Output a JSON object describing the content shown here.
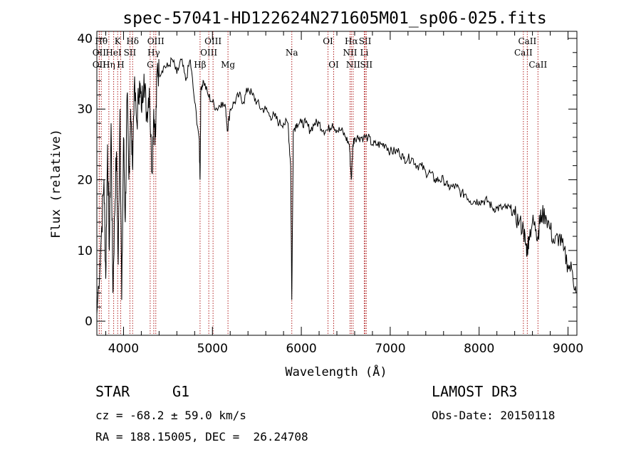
{
  "chart_data": {
    "type": "line",
    "title": "spec-57041-HD122624N271605M01_sp06-025.fits",
    "xlabel": "Wavelength (Å)",
    "ylabel": "Flux (relative)",
    "xlim": [
      3700,
      9100
    ],
    "ylim": [
      -2,
      41
    ],
    "xticks": [
      4000,
      5000,
      6000,
      7000,
      8000,
      9000
    ],
    "yticks": [
      0,
      10,
      20,
      30,
      40
    ],
    "grid": false,
    "series": [
      {
        "name": "flux",
        "x": [
          3700,
          3750,
          3780,
          3800,
          3820,
          3840,
          3860,
          3880,
          3900,
          3920,
          3940,
          3960,
          3980,
          4000,
          4020,
          4040,
          4060,
          4080,
          4100,
          4120,
          4150,
          4180,
          4200,
          4230,
          4260,
          4290,
          4320,
          4340,
          4360,
          4380,
          4400,
          4450,
          4500,
          4550,
          4600,
          4650,
          4700,
          4750,
          4800,
          4850,
          4861,
          4870,
          4900,
          4950,
          5000,
          5050,
          5100,
          5150,
          5170,
          5200,
          5250,
          5300,
          5350,
          5400,
          5450,
          5500,
          5550,
          5600,
          5650,
          5700,
          5750,
          5800,
          5850,
          5880,
          5893,
          5910,
          5950,
          6000,
          6050,
          6100,
          6150,
          6200,
          6250,
          6300,
          6350,
          6400,
          6450,
          6500,
          6540,
          6563,
          6580,
          6600,
          6650,
          6700,
          6750,
          6800,
          6850,
          6900,
          6950,
          7000,
          7050,
          7100,
          7150,
          7200,
          7250,
          7300,
          7350,
          7400,
          7450,
          7500,
          7550,
          7600,
          7650,
          7700,
          7750,
          7800,
          7850,
          7900,
          7950,
          8000,
          8050,
          8100,
          8150,
          8200,
          8250,
          8300,
          8350,
          8400,
          8450,
          8500,
          8520,
          8542,
          8560,
          8600,
          8640,
          8662,
          8680,
          8700,
          8750,
          8800,
          8850,
          8900,
          8950,
          9000,
          9050,
          9090
        ],
        "y": [
          1,
          12,
          20,
          6,
          25,
          10,
          28,
          4,
          15,
          24,
          8,
          30,
          3,
          26,
          14,
          32,
          20,
          30,
          22,
          33,
          28,
          34,
          30,
          35,
          29,
          33,
          21,
          30,
          26,
          36,
          35,
          36,
          36,
          37,
          35,
          37,
          34,
          37,
          31,
          26,
          20,
          33,
          34,
          32,
          31,
          30,
          31,
          30,
          27,
          30,
          31,
          32,
          31,
          33,
          32,
          31,
          30,
          30,
          29,
          29,
          28,
          28,
          28,
          22,
          3,
          27,
          28,
          28,
          28,
          27,
          28,
          28,
          27,
          27,
          28,
          27,
          27,
          26,
          25,
          20,
          25,
          26,
          26,
          26,
          26,
          25,
          25,
          25,
          25,
          24,
          24,
          24,
          23,
          23,
          23,
          22,
          22,
          21,
          21,
          20,
          20,
          20,
          19,
          19,
          19,
          18,
          18,
          17,
          17,
          17,
          17,
          17,
          16,
          16,
          16,
          16,
          16,
          15,
          14,
          13,
          11,
          10,
          12,
          14,
          13,
          12,
          14,
          15,
          15,
          13,
          11,
          12,
          10,
          8,
          7,
          4
        ]
      }
    ],
    "lines": [
      {
        "wave": 3750,
        "label": "Hθ",
        "row": 1
      },
      {
        "wave": 3727,
        "label": "OII",
        "row": 2
      },
      {
        "wave": 3727,
        "label": "OII",
        "row": 3
      },
      {
        "wave": 3835,
        "label": "Hη",
        "row": 3
      },
      {
        "wave": 3889,
        "label": "HeI",
        "row": 2
      },
      {
        "wave": 3934,
        "label": "K",
        "row": 1
      },
      {
        "wave": 3968,
        "label": "H",
        "row": 3
      },
      {
        "wave": 4072,
        "label": "SII",
        "row": 2
      },
      {
        "wave": 4102,
        "label": "Hδ",
        "row": 1
      },
      {
        "wave": 4300,
        "label": "G",
        "row": 3
      },
      {
        "wave": 4340,
        "label": "Hγ",
        "row": 2
      },
      {
        "wave": 4363,
        "label": "OIII",
        "row": 1
      },
      {
        "wave": 4861,
        "label": "Hβ",
        "row": 3
      },
      {
        "wave": 4959,
        "label": "OIII",
        "row": 2
      },
      {
        "wave": 5007,
        "label": "OIII",
        "row": 1
      },
      {
        "wave": 5175,
        "label": "Mg",
        "row": 3
      },
      {
        "wave": 5893,
        "label": "Na",
        "row": 2
      },
      {
        "wave": 6300,
        "label": "OI",
        "row": 1
      },
      {
        "wave": 6364,
        "label": "OI",
        "row": 3
      },
      {
        "wave": 6548,
        "label": "NII",
        "row": 2
      },
      {
        "wave": 6563,
        "label": "Hα",
        "row": 1
      },
      {
        "wave": 6583,
        "label": "NII",
        "row": 3
      },
      {
        "wave": 6708,
        "label": "Li",
        "row": 2
      },
      {
        "wave": 6717,
        "label": "SII",
        "row": 1
      },
      {
        "wave": 6731,
        "label": "SII",
        "row": 3
      },
      {
        "wave": 8498,
        "label": "CaII",
        "row": 2
      },
      {
        "wave": 8542,
        "label": "CaII",
        "row": 1
      },
      {
        "wave": 8662,
        "label": "CaII",
        "row": 3
      }
    ]
  },
  "info": {
    "object_class": "STAR",
    "subclass": "G1",
    "survey": "LAMOST DR3",
    "redshift": "cz = -68.2 ± 59.0 km/s",
    "obs_date": "Obs-Date: 20150118",
    "coords": "RA = 188.15005, DEC =  26.24708"
  }
}
